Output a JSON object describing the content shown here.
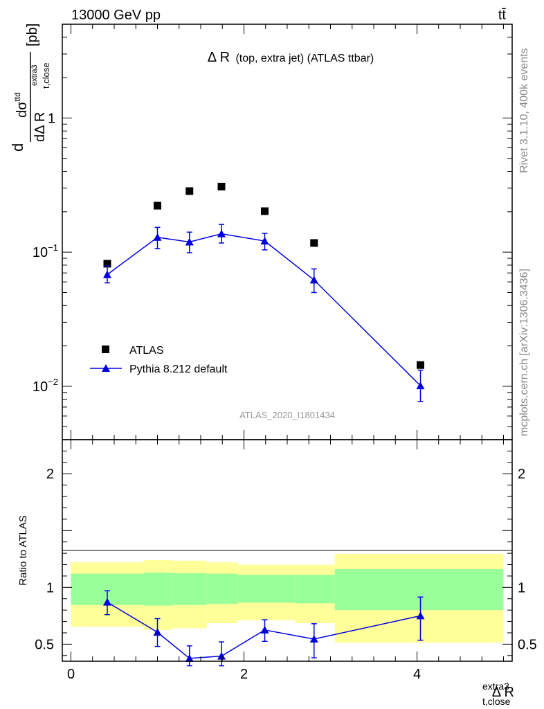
{
  "header": {
    "energy_label": "13000 GeV pp",
    "process_label": "tt̄"
  },
  "side": {
    "rivet_label": "Rivet 3.1.10,  400k events",
    "source_label": "mcplots.cern.ch [arXiv:1306.3436]"
  },
  "colors": {
    "data_marker": "#000000",
    "mc_line": "#0000dd",
    "band_inner": "#99ff99",
    "band_outer": "#ffff99",
    "watermark": "#999999"
  },
  "chart_data": [
    {
      "type": "scatter",
      "title": "Δ R (top, extra jet) (ATLAS ttbar)",
      "title_main": "Δ R",
      "title_sub": "(top, extra jet) (ATLAS ttbar)",
      "ylabel": "d dσ^ttd / dΔ R_t,close^extra3 [pb]",
      "ylabel_parts": {
        "d": "d",
        "numerator": "dσ",
        "numerator_sup": "ttd",
        "denominator": "dΔ R",
        "denominator_sub": "t,close",
        "denominator_sup": "extra3",
        "unit": "[pb]"
      },
      "yscale": "log",
      "ylim": [
        0.004,
        5
      ],
      "xlim": [
        -0.1,
        5.1
      ],
      "y_tick_labels": [
        {
          "value": 1,
          "base": "1",
          "exp": ""
        },
        {
          "value": 0.1,
          "base": "10",
          "exp": "−1"
        },
        {
          "value": 0.01,
          "base": "10",
          "exp": "−2"
        }
      ],
      "watermark": "ATLAS_2020_I1801434",
      "legend_position": "bottom-left",
      "series": [
        {
          "name": "ATLAS",
          "marker": "square",
          "x": [
            0.42,
            1.0,
            1.37,
            1.74,
            2.24,
            2.81,
            4.04
          ],
          "y": [
            0.082,
            0.222,
            0.285,
            0.308,
            0.202,
            0.117,
            0.0144
          ]
        },
        {
          "name": "Pythia 8.212 default",
          "marker": "triangle",
          "x": [
            0.42,
            1.0,
            1.37,
            1.74,
            2.24,
            2.81,
            4.04
          ],
          "y": [
            0.068,
            0.129,
            0.119,
            0.137,
            0.121,
            0.062,
            0.0101
          ],
          "err_lo": [
            0.059,
            0.106,
            0.099,
            0.117,
            0.104,
            0.05,
            0.0077
          ],
          "err_hi": [
            0.079,
            0.153,
            0.141,
            0.161,
            0.138,
            0.075,
            0.0132
          ]
        }
      ]
    },
    {
      "type": "line",
      "ylabel": "Ratio to ATLAS",
      "xlabel": "Δ R_t,close^extra3",
      "xlabel_parts": {
        "main": "Δ R",
        "sub": "t,close",
        "sup": "extra3"
      },
      "ylim": [
        0.35,
        2.3
      ],
      "xlim": [
        -0.1,
        5.1
      ],
      "x_ticks": [
        0,
        2,
        4
      ],
      "y_ticks": [
        0.5,
        1,
        2
      ],
      "bins": [
        {
          "lo": 0.0,
          "hi": 0.84,
          "band_inner": [
            0.845,
            1.12
          ],
          "band_outer": [
            0.655,
            1.22
          ]
        },
        {
          "lo": 0.84,
          "hi": 1.17,
          "band_inner": [
            0.84,
            1.13
          ],
          "band_outer": [
            0.625,
            1.24
          ]
        },
        {
          "lo": 1.17,
          "hi": 1.57,
          "band_inner": [
            0.845,
            1.125
          ],
          "band_outer": [
            0.64,
            1.235
          ]
        },
        {
          "lo": 1.57,
          "hi": 1.93,
          "band_inner": [
            0.855,
            1.12
          ],
          "band_outer": [
            0.685,
            1.22
          ]
        },
        {
          "lo": 1.93,
          "hi": 2.59,
          "band_inner": [
            0.865,
            1.11
          ],
          "band_outer": [
            0.71,
            1.2
          ]
        },
        {
          "lo": 2.59,
          "hi": 3.05,
          "band_inner": [
            0.86,
            1.11
          ],
          "band_outer": [
            0.685,
            1.2
          ]
        },
        {
          "lo": 3.05,
          "hi": 5.0,
          "band_inner": [
            0.8,
            1.16
          ],
          "band_outer": [
            0.515,
            1.295
          ]
        }
      ],
      "ratio": {
        "x": [
          0.42,
          1.0,
          1.37,
          1.74,
          2.24,
          2.81,
          4.04
        ],
        "y": [
          0.87,
          0.605,
          0.375,
          0.395,
          0.625,
          0.545,
          0.75
        ],
        "err_lo": [
          0.76,
          0.48,
          0.31,
          0.31,
          0.525,
          0.38,
          0.535
        ],
        "err_hi": [
          0.97,
          0.725,
          0.485,
          0.52,
          0.715,
          0.68,
          0.915
        ]
      }
    }
  ]
}
